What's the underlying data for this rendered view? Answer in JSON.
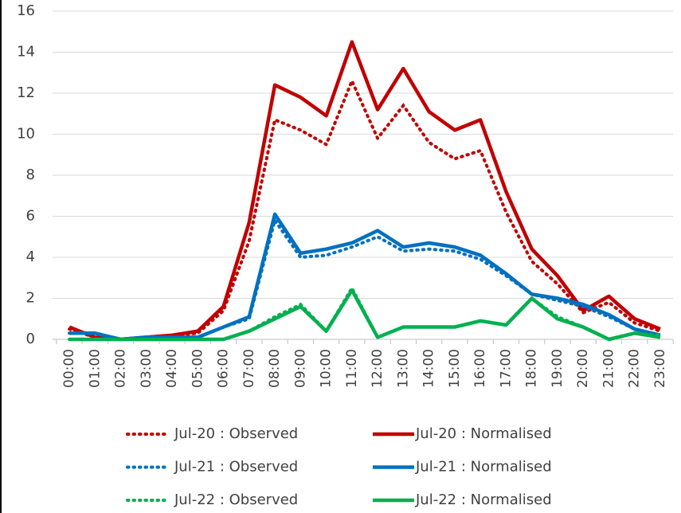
{
  "chart_data": {
    "type": "line",
    "categories": [
      "00:00",
      "01:00",
      "02:00",
      "03:00",
      "04:00",
      "05:00",
      "06:00",
      "07:00",
      "08:00",
      "09:00",
      "10:00",
      "11:00",
      "12:00",
      "13:00",
      "14:00",
      "15:00",
      "16:00",
      "17:00",
      "18:00",
      "19:00",
      "20:00",
      "21:00",
      "22:00",
      "23:00"
    ],
    "series": [
      {
        "name": "Jul-20 : Observed",
        "color": "#c00000",
        "style": "dotted",
        "values": [
          0.5,
          0.1,
          0,
          0.1,
          0.2,
          0.3,
          1.4,
          4.8,
          10.7,
          10.2,
          9.5,
          12.6,
          9.8,
          11.4,
          9.6,
          8.8,
          9.2,
          6.2,
          3.8,
          2.7,
          1.3,
          1.8,
          0.8,
          0.4
        ]
      },
      {
        "name": "Jul-20 : Normalised",
        "color": "#c00000",
        "style": "solid",
        "values": [
          0.6,
          0.1,
          0,
          0.1,
          0.2,
          0.4,
          1.6,
          5.7,
          12.4,
          11.8,
          10.9,
          14.5,
          11.2,
          13.2,
          11.1,
          10.2,
          10.7,
          7.2,
          4.4,
          3.1,
          1.4,
          2.1,
          1.0,
          0.5
        ]
      },
      {
        "name": "Jul-21 : Observed",
        "color": "#0070c0",
        "style": "dotted",
        "values": [
          0.3,
          0.3,
          0,
          0.1,
          0.1,
          0.1,
          0.6,
          1.0,
          5.8,
          4.0,
          4.1,
          4.5,
          5.0,
          4.3,
          4.4,
          4.3,
          3.9,
          3.1,
          2.2,
          1.9,
          1.6,
          1.1,
          0.5,
          0.2
        ]
      },
      {
        "name": "Jul-21 : Normalised",
        "color": "#0070c0",
        "style": "solid",
        "values": [
          0.3,
          0.3,
          0,
          0.1,
          0.1,
          0.1,
          0.6,
          1.1,
          6.1,
          4.2,
          4.4,
          4.7,
          5.3,
          4.5,
          4.7,
          4.5,
          4.1,
          3.2,
          2.2,
          2.0,
          1.7,
          1.2,
          0.5,
          0.2
        ]
      },
      {
        "name": "Jul-22 : Observed",
        "color": "#00b050",
        "style": "dotted",
        "values": [
          0,
          0,
          0,
          0,
          0,
          0,
          0,
          0.4,
          1.1,
          1.7,
          0.4,
          2.5,
          0.1,
          0.6,
          0.6,
          0.6,
          0.9,
          0.7,
          2.0,
          1.1,
          0.6,
          0,
          0.3,
          0.2
        ]
      },
      {
        "name": "Jul-22 : Normalised",
        "color": "#00b050",
        "style": "solid",
        "values": [
          0,
          0,
          0,
          0,
          0,
          0,
          0,
          0.4,
          1.0,
          1.6,
          0.4,
          2.4,
          0.1,
          0.6,
          0.6,
          0.6,
          0.9,
          0.7,
          2.0,
          1.0,
          0.6,
          0,
          0.3,
          0.1
        ]
      }
    ],
    "ylim": [
      0,
      16
    ],
    "yticks": [
      0,
      2,
      4,
      6,
      8,
      10,
      12,
      14,
      16
    ],
    "grid": true,
    "legend": "bottom"
  }
}
